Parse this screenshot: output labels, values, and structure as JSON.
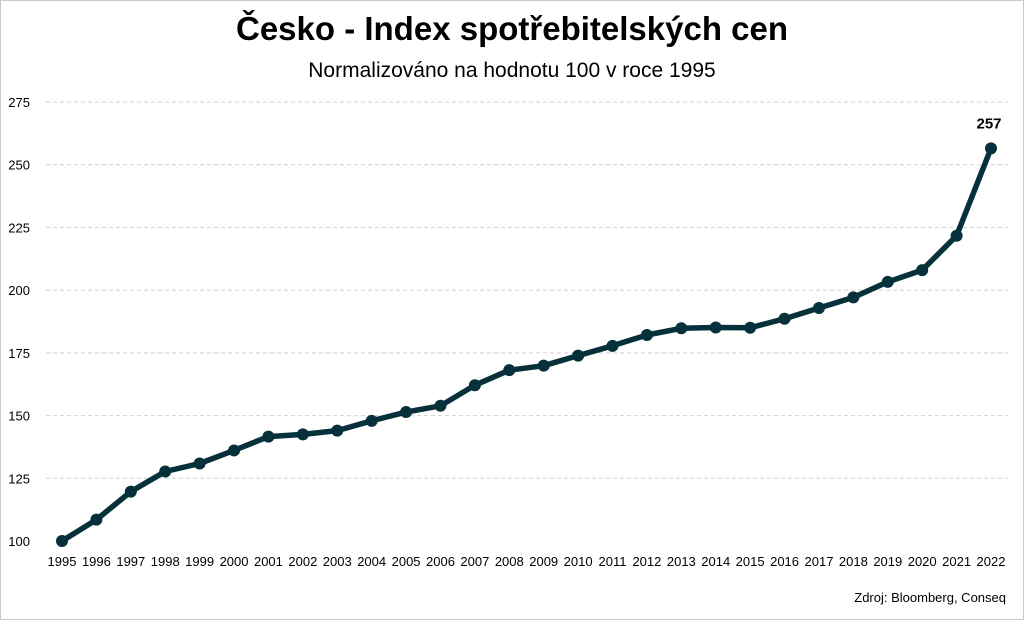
{
  "chart_data": {
    "type": "line",
    "title": "Česko - Index spotřebitelských cen",
    "subtitle": "Normalizováno na hodnotu 100 v roce 1995",
    "source": "Zdroj: Bloomberg, Conseq",
    "xlabel": "",
    "ylabel": "",
    "ylim": [
      100,
      275
    ],
    "yticks": [
      100,
      125,
      150,
      175,
      200,
      225,
      250,
      275
    ],
    "grid": true,
    "legend": "none",
    "categories": [
      "1995",
      "1996",
      "1997",
      "1998",
      "1999",
      "2000",
      "2001",
      "2002",
      "2003",
      "2004",
      "2005",
      "2006",
      "2007",
      "2008",
      "2009",
      "2010",
      "2011",
      "2012",
      "2013",
      "2014",
      "2015",
      "2016",
      "2017",
      "2018",
      "2019",
      "2020",
      "2021",
      "2022"
    ],
    "series": [
      {
        "values": [
          100,
          108.5,
          119.7,
          127.7,
          130.9,
          136.1,
          141.6,
          142.5,
          144.0,
          147.9,
          151.4,
          153.9,
          162.1,
          168.1,
          169.9,
          173.9,
          177.8,
          182.1,
          184.8,
          185.1,
          185.0,
          188.6,
          192.9,
          197.1,
          203.3,
          208.0,
          221.7,
          256.5
        ],
        "color": "#06303a"
      }
    ],
    "annotations": [
      {
        "category": "2022",
        "text": "257"
      }
    ]
  }
}
